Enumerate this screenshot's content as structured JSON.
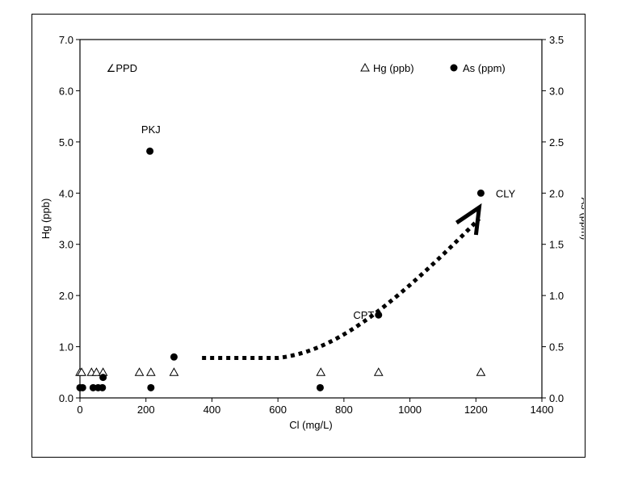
{
  "chart_data": {
    "type": "scatter",
    "xlabel": "Cl (mg/L)",
    "ylabel_left": "Hg (ppb)",
    "ylabel_right": "As (ppm)",
    "xlim": [
      0,
      1400
    ],
    "ylim_left": [
      0,
      7
    ],
    "ylim_right": [
      0,
      3.5
    ],
    "x_ticks": [
      "0",
      "200",
      "400",
      "600",
      "800",
      "1000",
      "1200",
      "1400"
    ],
    "y_left_ticks": [
      "0.0",
      "1.0",
      "2.0",
      "3.0",
      "4.0",
      "5.0",
      "6.0",
      "7.0"
    ],
    "y_right_ticks": [
      "0.0",
      "0.5",
      "1.0",
      "1.5",
      "2.0",
      "2.5",
      "3.0",
      "3.5"
    ],
    "grid": false,
    "legend_position": "top-right",
    "series": [
      {
        "name": "Hg (ppb)",
        "axis": "left",
        "marker": "open-triangle",
        "color": "#000000",
        "points": [
          [
            0,
            0.5
          ],
          [
            5,
            0.5
          ],
          [
            35,
            0.5
          ],
          [
            50,
            0.5
          ],
          [
            70,
            0.5
          ],
          [
            180,
            0.5
          ],
          [
            215,
            0.5
          ],
          [
            285,
            0.5
          ],
          [
            730,
            0.5
          ],
          [
            905,
            0.5
          ],
          [
            1215,
            0.5
          ]
        ]
      },
      {
        "name": "As (ppm)",
        "axis": "right",
        "marker": "filled-circle",
        "color": "#000000",
        "points": [
          [
            0,
            0.1
          ],
          [
            8,
            0.1
          ],
          [
            40,
            0.1
          ],
          [
            55,
            0.1
          ],
          [
            68,
            0.1
          ],
          [
            70,
            0.2
          ],
          [
            212,
            2.41
          ],
          [
            215,
            0.1
          ],
          [
            285,
            0.4
          ],
          [
            728,
            0.1
          ],
          [
            905,
            0.81
          ],
          [
            1215,
            2.0
          ]
        ]
      }
    ],
    "annotations": [
      {
        "text": "PPD",
        "x": 80,
        "y": 6.45,
        "prefix_glyph": "∠"
      },
      {
        "text": "PKJ",
        "x": 215,
        "y": 5.25
      },
      {
        "text": "CPT",
        "x": 860,
        "y": 1.62
      },
      {
        "text": "CLY",
        "x": 1290,
        "y": 4.0
      }
    ],
    "trend_arrow": {
      "style": "dotted",
      "points": [
        [
          370,
          0.78
        ],
        [
          600,
          0.78
        ],
        [
          760,
          0.9
        ],
        [
          920,
          1.6
        ],
        [
          1210,
          3.5
        ]
      ]
    }
  }
}
